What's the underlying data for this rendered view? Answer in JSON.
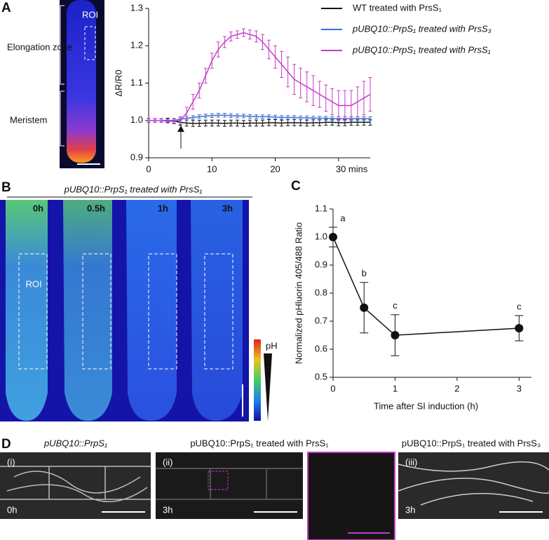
{
  "chart_data": [
    {
      "type": "line",
      "ylabel": "ΔR/R0",
      "x": [
        0,
        1,
        2,
        3,
        4,
        5,
        6,
        7,
        8,
        9,
        10,
        11,
        12,
        13,
        14,
        15,
        16,
        17,
        18,
        19,
        20,
        21,
        22,
        23,
        24,
        25,
        26,
        27,
        28,
        29,
        30,
        31,
        32,
        33,
        34,
        35
      ],
      "xlim": [
        0,
        35
      ],
      "xticks": [
        0,
        10,
        20,
        {
          "value": 30,
          "label": "30 mins"
        }
      ],
      "ylim": [
        0.9,
        1.3
      ],
      "yticks": [
        0.9,
        {
          "value": 1,
          "label": "1.0"
        },
        1.1,
        1.2,
        1.3
      ],
      "series": [
        {
          "name": "WT treated with PrsS₁",
          "color": "#111111",
          "values": [
            1.0,
            1.0,
            1.0,
            1.0,
            0.998,
            0.995,
            0.993,
            0.992,
            0.992,
            0.993,
            0.993,
            0.993,
            0.992,
            0.993,
            0.993,
            0.992,
            0.993,
            0.993,
            0.993,
            0.994,
            0.994,
            0.993,
            0.994,
            0.994,
            0.994,
            0.993,
            0.994,
            0.994,
            0.995,
            0.995,
            0.994,
            0.994,
            0.995,
            0.995,
            0.995,
            0.995
          ],
          "errors": [
            0.005,
            0.005,
            0.005,
            0.006,
            0.007,
            0.008,
            0.008,
            0.008,
            0.008,
            0.008,
            0.008,
            0.008,
            0.008,
            0.008,
            0.008,
            0.008,
            0.008,
            0.008,
            0.008,
            0.008,
            0.008,
            0.008,
            0.008,
            0.008,
            0.008,
            0.008,
            0.008,
            0.008,
            0.008,
            0.008,
            0.008,
            0.008,
            0.008,
            0.008,
            0.008,
            0.008
          ]
        },
        {
          "name": "pUBQ10::PrpS₁ treated with PrsS₃",
          "color": "#3a6fd8",
          "values": [
            1.0,
            1.0,
            1.0,
            1.0,
            1.0,
            1.003,
            1.006,
            1.008,
            1.01,
            1.012,
            1.013,
            1.014,
            1.014,
            1.013,
            1.012,
            1.012,
            1.011,
            1.01,
            1.01,
            1.01,
            1.009,
            1.008,
            1.008,
            1.008,
            1.007,
            1.007,
            1.006,
            1.006,
            1.006,
            1.005,
            1.005,
            1.005,
            1.005,
            1.005,
            1.005,
            1.005
          ],
          "errors": [
            0.004,
            0.004,
            0.004,
            0.004,
            0.004,
            0.004,
            0.005,
            0.005,
            0.005,
            0.005,
            0.005,
            0.005,
            0.005,
            0.005,
            0.005,
            0.005,
            0.005,
            0.005,
            0.005,
            0.005,
            0.005,
            0.005,
            0.005,
            0.005,
            0.005,
            0.005,
            0.005,
            0.005,
            0.005,
            0.005,
            0.005,
            0.005,
            0.005,
            0.005,
            0.005,
            0.005
          ]
        },
        {
          "name": "pUBQ10::PrpS₁ treated with PrsS₁",
          "color": "#c43cc8",
          "values": [
            1.0,
            1.0,
            1.0,
            0.998,
            0.998,
            1.0,
            1.02,
            1.05,
            1.08,
            1.12,
            1.16,
            1.19,
            1.21,
            1.225,
            1.23,
            1.235,
            1.23,
            1.225,
            1.21,
            1.19,
            1.17,
            1.15,
            1.13,
            1.11,
            1.1,
            1.09,
            1.08,
            1.07,
            1.06,
            1.05,
            1.04,
            1.04,
            1.04,
            1.05,
            1.06,
            1.07
          ],
          "errors": [
            0.005,
            0.005,
            0.005,
            0.005,
            0.006,
            0.01,
            0.015,
            0.02,
            0.02,
            0.02,
            0.02,
            0.02,
            0.015,
            0.012,
            0.01,
            0.01,
            0.012,
            0.015,
            0.02,
            0.025,
            0.03,
            0.035,
            0.04,
            0.04,
            0.04,
            0.04,
            0.04,
            0.035,
            0.035,
            0.035,
            0.04,
            0.04,
            0.04,
            0.04,
            0.045,
            0.045
          ]
        }
      ]
    },
    {
      "type": "scatter-line",
      "xlabel": "Time after SI induction (h)",
      "ylabel": "Normalized pHluorin 405/488 Ratio",
      "x": [
        0,
        0.5,
        1,
        3
      ],
      "values": [
        1.0,
        0.748,
        0.65,
        0.675
      ],
      "errors": [
        0.035,
        0.09,
        0.073,
        0.045
      ],
      "annotations": [
        "a",
        "b",
        "c",
        "c"
      ],
      "color": "#111111",
      "xlim": [
        0,
        3.2
      ],
      "xticks": [
        0,
        1,
        2,
        3
      ],
      "ylim": [
        0.5,
        1.1
      ],
      "yticks": [
        0.5,
        0.6,
        0.7,
        0.8,
        0.9,
        {
          "value": 1,
          "label": "1.0"
        },
        1.1
      ]
    }
  ],
  "labels": {
    "A": "A",
    "B": "B",
    "C": "C",
    "D": "D"
  },
  "panel_a": {
    "roi": "ROI",
    "elongation": "Elongation zone",
    "meristem": "Meristem"
  },
  "panel_b": {
    "title": "pUBQ10::PrpS₁ treated with PrsS₁",
    "times": [
      "0h",
      "0.5h",
      "1h",
      "3h"
    ],
    "roi": "ROI",
    "colorbar": "pH"
  },
  "panel_d": {
    "titles": [
      "pUBQ10::PrpS₁",
      "pUBQ10::PrpS₁ treated with PrsS₁",
      "pUBQ10::PrpS₁ treated with PrsS₃"
    ],
    "numerals": [
      "(i)",
      "(ii)",
      "(iii)"
    ],
    "times": [
      "0h",
      "3h",
      "3h"
    ]
  }
}
